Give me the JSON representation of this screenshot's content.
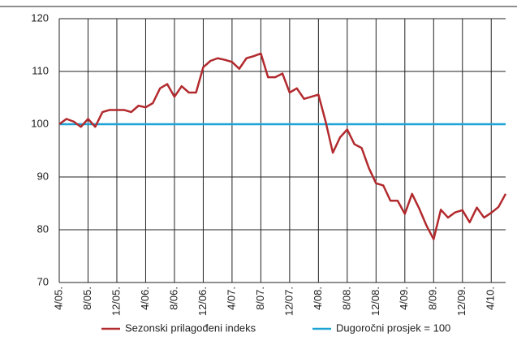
{
  "chart_data": {
    "type": "line",
    "categories": [
      "4/05.",
      null,
      null,
      null,
      "8/05.",
      null,
      null,
      null,
      "12/05.",
      null,
      null,
      null,
      "4/06.",
      null,
      null,
      null,
      "8/06.",
      null,
      null,
      null,
      "12/06.",
      null,
      null,
      null,
      "4/07.",
      null,
      null,
      null,
      "8/07.",
      null,
      null,
      null,
      "12/07.",
      null,
      null,
      null,
      "4/08.",
      null,
      null,
      null,
      "8/08.",
      null,
      null,
      null,
      "12/08.",
      null,
      null,
      null,
      "4/09.",
      null,
      null,
      null,
      "8/09.",
      null,
      null,
      null,
      "12/09.",
      null,
      null,
      null,
      "4/10.",
      null,
      null
    ],
    "series": [
      {
        "name": "Sezonski prilagođeni indeks",
        "color": "#b22a2e",
        "values": [
          100,
          101,
          100.5,
          99.5,
          101,
          99.5,
          102.3,
          102.7,
          102.7,
          102.7,
          102.3,
          103.5,
          103.2,
          104,
          106.8,
          107.6,
          105.2,
          107.2,
          106,
          106,
          110.8,
          112,
          112.5,
          112.2,
          111.8,
          110.5,
          112.5,
          112.9,
          113.4,
          108.9,
          108.9,
          109.6,
          106,
          106.8,
          104.8,
          105.2,
          105.6,
          100.5,
          94.6,
          97.5,
          99,
          96.2,
          95.5,
          91.7,
          88.8,
          88.4,
          85.5,
          85.5,
          83,
          86.8,
          84,
          80.8,
          78.2,
          83.8,
          82.3,
          83.3,
          83.7,
          81.4,
          84.2,
          82.3,
          83.2,
          84.3,
          86.8
        ]
      },
      {
        "name": "Dugoročni prosjek = 100",
        "color": "#1ba3d6",
        "values": [
          100,
          100,
          100,
          100,
          100,
          100,
          100,
          100,
          100,
          100,
          100,
          100,
          100,
          100,
          100,
          100,
          100,
          100,
          100,
          100,
          100,
          100,
          100,
          100,
          100,
          100,
          100,
          100,
          100,
          100,
          100,
          100,
          100,
          100,
          100,
          100,
          100,
          100,
          100,
          100,
          100,
          100,
          100,
          100,
          100,
          100,
          100,
          100,
          100,
          100,
          100,
          100,
          100,
          100,
          100,
          100,
          100,
          100,
          100,
          100,
          100,
          100,
          100
        ]
      }
    ],
    "ylim": [
      70,
      120
    ],
    "yticks": [
      70,
      80,
      90,
      100,
      110,
      120
    ],
    "grid": true
  }
}
